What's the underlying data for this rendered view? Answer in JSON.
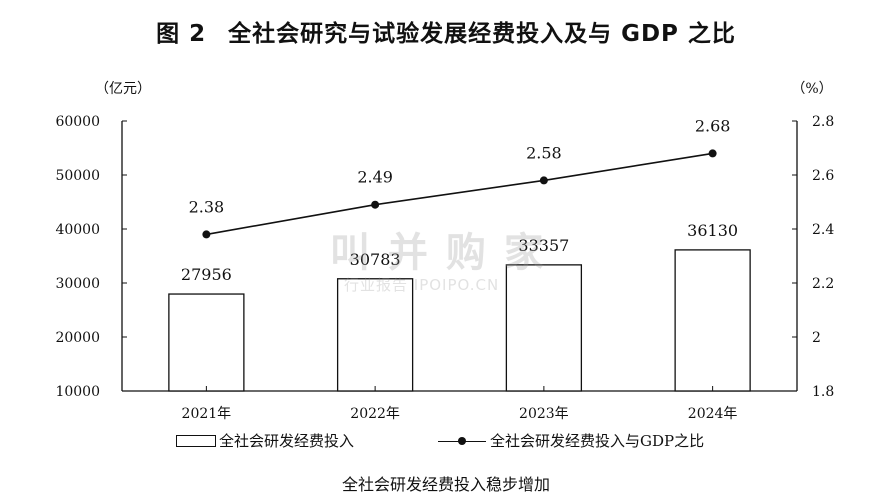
{
  "figure": {
    "number": "图 2",
    "title": "全社会研究与试验发展经费投入及与 GDP 之比",
    "caption": "全社会研发经费投入稳步增加"
  },
  "watermark": {
    "main": "叫 并 购 家",
    "sub": "行业报告 IPOIPO.CN"
  },
  "chart_data": {
    "type": "bar",
    "categories": [
      "2021年",
      "2022年",
      "2023年",
      "2024年"
    ],
    "series": [
      {
        "name": "全社会研发经费投入",
        "type": "bar",
        "axis": "left",
        "values": [
          27956,
          30783,
          33357,
          36130
        ]
      },
      {
        "name": "全社会研发经费投入与GDP之比",
        "type": "line",
        "axis": "right",
        "values": [
          2.38,
          2.49,
          2.58,
          2.68
        ]
      }
    ],
    "y_left": {
      "unit": "（亿元）",
      "range": [
        10000,
        60000
      ],
      "ticks": [
        "10000",
        "20000",
        "30000",
        "40000",
        "50000",
        "60000"
      ]
    },
    "y_right": {
      "unit": "（%）",
      "range": [
        1.8,
        2.8
      ],
      "ticks": [
        "1.8",
        "2",
        "2.2",
        "2.4",
        "2.6",
        "2.8"
      ]
    },
    "grid": false,
    "legend_position": "bottom",
    "bar_fill": "#ffffff",
    "ink_color": "#111111"
  }
}
